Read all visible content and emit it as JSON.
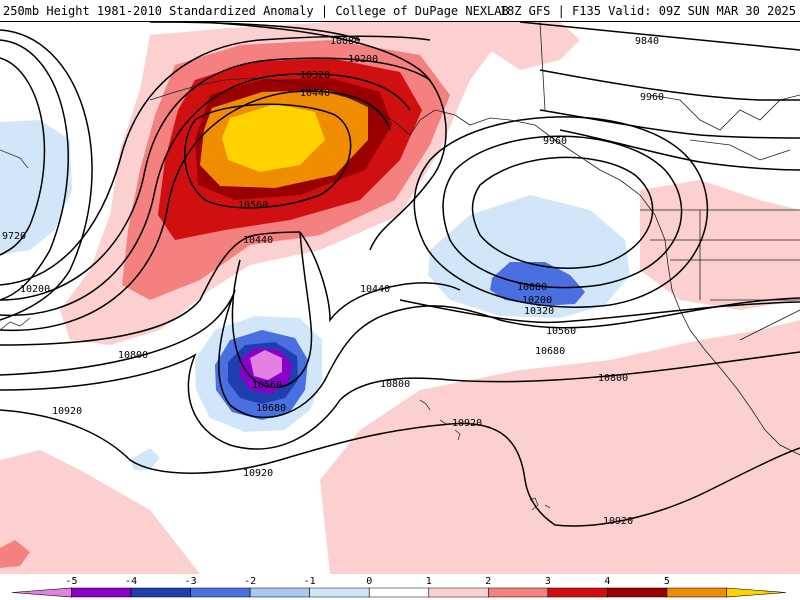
{
  "header": {
    "left_title": "250mb Height 1981-2010 Standardized Anomaly | College of DuPage NEXLAB",
    "right_title": "18Z GFS | F135 Valid: 09Z SUN MAR 30 2025"
  },
  "contour_labels": {
    "h10080_top": "10080",
    "h10200_top": "10200",
    "h10320_top": "10320",
    "h10440_top": "10440",
    "h10560_ak": "10560",
    "h10440_mid": "10440",
    "h10440_east": "10440",
    "h9720": "9720",
    "h10200_left": "10200",
    "h9840": "9840",
    "h9960_ne": "9960",
    "h9960_low": "9960",
    "h10080_low": "10080",
    "h10200_low": "10200",
    "h10320_low": "10320",
    "h10560_e": "10560",
    "h10680_e": "10680",
    "h10800_left": "10800",
    "h10800_mid": "10800",
    "h10800_right": "10800",
    "h10560_low": "10560",
    "h10680_low": "10680",
    "h10920_left": "10920",
    "h10920_mid": "10920",
    "h10920_bot": "10920",
    "h10920_right": "10920"
  },
  "colorbar": {
    "ticks": [
      "-5",
      "-4",
      "-3",
      "-2",
      "-1",
      "0",
      "1",
      "2",
      "3",
      "4",
      "5"
    ],
    "colors": [
      "#e47fe4",
      "#8a00c8",
      "#1f3fb0",
      "#4a6fe0",
      "#a8c8f0",
      "#d2e6fa",
      "#ffffff",
      "#fcd0d0",
      "#f48080",
      "#d01010",
      "#9a0000",
      "#f08c00",
      "#ffd200"
    ]
  }
}
